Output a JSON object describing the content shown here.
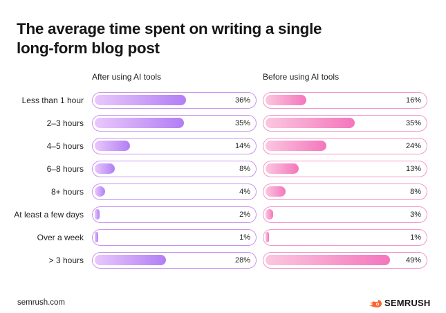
{
  "title_line1": "The average time spent on writing a single",
  "title_line2": "long-form blog post",
  "colors": {
    "after": "#b27ef4",
    "before": "#f476bd"
  },
  "footer": {
    "source": "semrush.com",
    "brand": "SEMRUSH"
  },
  "chart_data": {
    "type": "bar",
    "orientation": "horizontal",
    "categories": [
      "Less than 1 hour",
      "2–3 hours",
      "4–5 hours",
      "6–8 hours",
      "8+ hours",
      "At least a few days",
      "Over a week",
      "> 3 hours"
    ],
    "series": [
      {
        "name": "After using AI tools",
        "values": [
          36,
          35,
          14,
          8,
          4,
          2,
          1,
          28
        ],
        "labels": [
          "36%",
          "35%",
          "14%",
          "8%",
          "4%",
          "2%",
          "1%",
          "28%"
        ]
      },
      {
        "name": "Before using AI tools",
        "values": [
          16,
          35,
          24,
          13,
          8,
          3,
          1,
          49
        ],
        "labels": [
          "16%",
          "35%",
          "24%",
          "13%",
          "8%",
          "3%",
          "1%",
          "49%"
        ]
      }
    ],
    "unit": "%"
  }
}
